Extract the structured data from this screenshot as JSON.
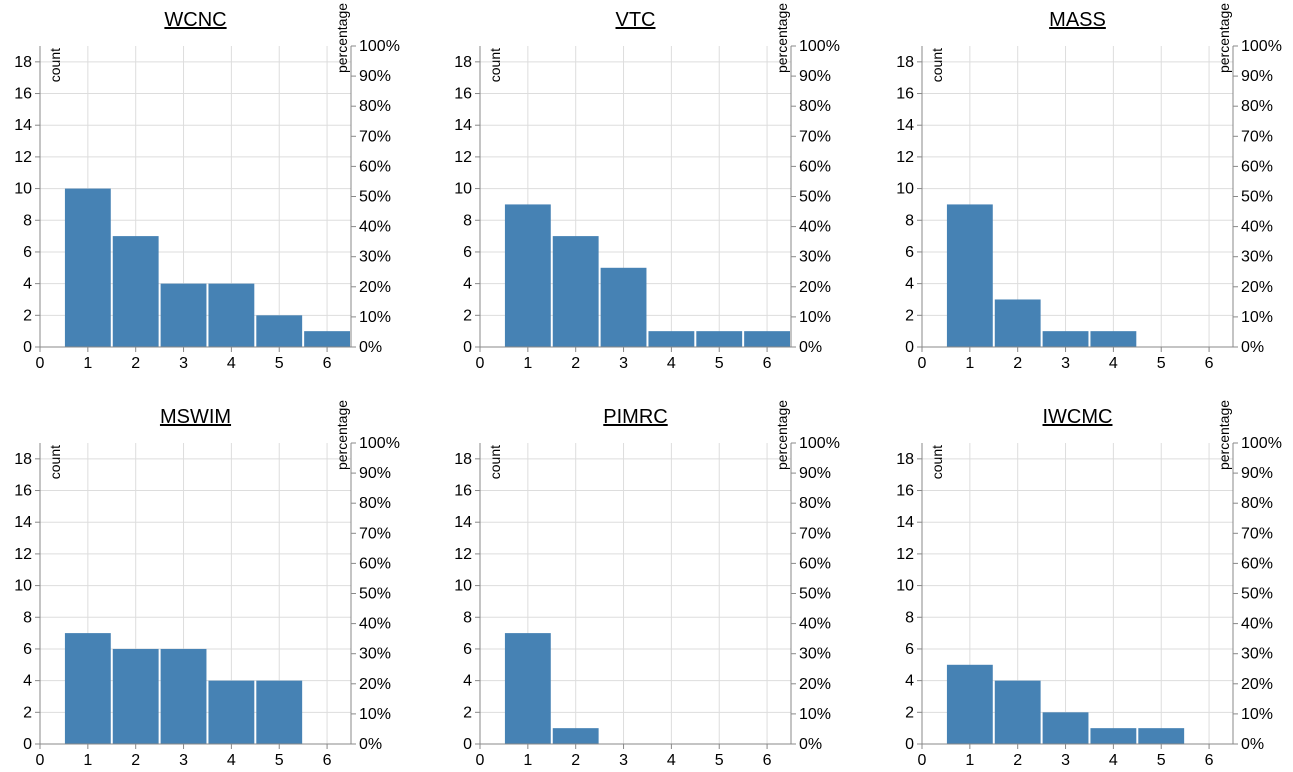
{
  "colors": {
    "bar": "#4682b4",
    "grid": "#dddddd",
    "axis": "#888888"
  },
  "chart_data": [
    {
      "type": "bar",
      "title": "WCNC",
      "categories": [
        1,
        2,
        3,
        4,
        5,
        6
      ],
      "values": [
        10,
        7,
        4,
        4,
        2,
        1
      ],
      "xticks": [
        0,
        1,
        2,
        3,
        4,
        5,
        6
      ],
      "xlim": [
        0,
        6.5
      ],
      "ylabel": "count",
      "ylim": [
        0,
        19
      ],
      "yticks": [
        0,
        2,
        4,
        6,
        8,
        10,
        12,
        14,
        16,
        18
      ],
      "y2label": "percentage",
      "y2ticks": [
        "0%",
        "10%",
        "20%",
        "30%",
        "40%",
        "50%",
        "60%",
        "70%",
        "80%",
        "90%",
        "100%"
      ],
      "grid": true
    },
    {
      "type": "bar",
      "title": "VTC",
      "categories": [
        1,
        2,
        3,
        4,
        5,
        6
      ],
      "values": [
        9,
        7,
        5,
        1,
        1,
        1
      ],
      "xticks": [
        0,
        1,
        2,
        3,
        4,
        5,
        6
      ],
      "xlim": [
        0,
        6.5
      ],
      "ylabel": "count",
      "ylim": [
        0,
        19
      ],
      "yticks": [
        0,
        2,
        4,
        6,
        8,
        10,
        12,
        14,
        16,
        18
      ],
      "y2label": "percentage",
      "y2ticks": [
        "0%",
        "10%",
        "20%",
        "30%",
        "40%",
        "50%",
        "60%",
        "70%",
        "80%",
        "90%",
        "100%"
      ],
      "grid": true
    },
    {
      "type": "bar",
      "title": "MASS",
      "categories": [
        1,
        2,
        3,
        4
      ],
      "values": [
        9,
        3,
        1,
        1
      ],
      "xticks": [
        0,
        1,
        2,
        3,
        4,
        5,
        6
      ],
      "xlim": [
        0,
        6.5
      ],
      "ylabel": "count",
      "ylim": [
        0,
        19
      ],
      "yticks": [
        0,
        2,
        4,
        6,
        8,
        10,
        12,
        14,
        16,
        18
      ],
      "y2label": "percentage",
      "y2ticks": [
        "0%",
        "10%",
        "20%",
        "30%",
        "40%",
        "50%",
        "60%",
        "70%",
        "80%",
        "90%",
        "100%"
      ],
      "grid": true
    },
    {
      "type": "bar",
      "title": "MSWIM",
      "categories": [
        1,
        2,
        3,
        4,
        5
      ],
      "values": [
        7,
        6,
        6,
        4,
        4
      ],
      "xticks": [
        0,
        1,
        2,
        3,
        4,
        5,
        6
      ],
      "xlim": [
        0,
        6.5
      ],
      "ylabel": "count",
      "ylim": [
        0,
        19
      ],
      "yticks": [
        0,
        2,
        4,
        6,
        8,
        10,
        12,
        14,
        16,
        18
      ],
      "y2label": "percentage",
      "y2ticks": [
        "0%",
        "10%",
        "20%",
        "30%",
        "40%",
        "50%",
        "60%",
        "70%",
        "80%",
        "90%",
        "100%"
      ],
      "grid": true
    },
    {
      "type": "bar",
      "title": "PIMRC",
      "categories": [
        1,
        2
      ],
      "values": [
        7,
        1
      ],
      "xticks": [
        0,
        1,
        2,
        3,
        4,
        5,
        6
      ],
      "xlim": [
        0,
        6.5
      ],
      "ylabel": "count",
      "ylim": [
        0,
        19
      ],
      "yticks": [
        0,
        2,
        4,
        6,
        8,
        10,
        12,
        14,
        16,
        18
      ],
      "y2label": "percentage",
      "y2ticks": [
        "0%",
        "10%",
        "20%",
        "30%",
        "40%",
        "50%",
        "60%",
        "70%",
        "80%",
        "90%",
        "100%"
      ],
      "grid": true
    },
    {
      "type": "bar",
      "title": "IWCMC",
      "categories": [
        1,
        2,
        3,
        4,
        5
      ],
      "values": [
        5,
        4,
        2,
        1,
        1
      ],
      "xticks": [
        0,
        1,
        2,
        3,
        4,
        5,
        6
      ],
      "xlim": [
        0,
        6.5
      ],
      "ylabel": "count",
      "ylim": [
        0,
        19
      ],
      "yticks": [
        0,
        2,
        4,
        6,
        8,
        10,
        12,
        14,
        16,
        18
      ],
      "y2label": "percentage",
      "y2ticks": [
        "0%",
        "10%",
        "20%",
        "30%",
        "40%",
        "50%",
        "60%",
        "70%",
        "80%",
        "90%",
        "100%"
      ],
      "grid": true
    }
  ]
}
